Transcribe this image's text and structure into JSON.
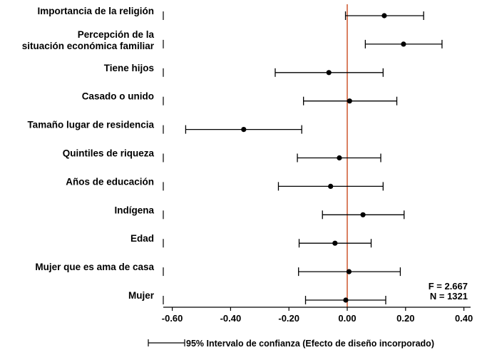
{
  "chart_data": {
    "type": "scatter",
    "subtype": "coefficient-plot",
    "orientation": "horizontal",
    "categories": [
      [
        "Importancia de la religión"
      ],
      [
        "Percepción de la",
        "situación económica familiar"
      ],
      [
        "Tiene hijos"
      ],
      [
        "Casado o unido"
      ],
      [
        "Tamaño lugar de residencia"
      ],
      [
        "Quintiles de riqueza"
      ],
      [
        "Años de educación"
      ],
      [
        "Indígena"
      ],
      [
        "Edad"
      ],
      [
        "Mujer que es ama de casa"
      ],
      [
        "Mujer"
      ]
    ],
    "estimates": [
      0.127,
      0.193,
      -0.063,
      0.008,
      -0.355,
      -0.027,
      -0.057,
      0.054,
      -0.042,
      0.006,
      -0.005
    ],
    "ci_low": [
      -0.006,
      0.062,
      -0.247,
      -0.15,
      -0.554,
      -0.171,
      -0.236,
      -0.085,
      -0.165,
      -0.167,
      -0.143
    ],
    "ci_high": [
      0.262,
      0.325,
      0.123,
      0.17,
      -0.156,
      0.115,
      0.123,
      0.195,
      0.082,
      0.182,
      0.132
    ],
    "xlim": [
      -0.65,
      0.42
    ],
    "xticks": [
      -0.6,
      -0.4,
      -0.2,
      0.0,
      0.2,
      0.4
    ],
    "xtick_labels": [
      "-0.60",
      "-0.40",
      "-0.20",
      "0.00",
      "0.20",
      "0.40"
    ],
    "reference_line": 0.0,
    "reference_color": "#d0603a",
    "stats": [
      "F = 2.667",
      "N = 1321"
    ],
    "legend": {
      "label": "95% Intervalo de confianza (Efecto de diseño incorporado)",
      "placement": "bottom"
    },
    "grid": false,
    "xlabel": "",
    "ylabel": ""
  }
}
